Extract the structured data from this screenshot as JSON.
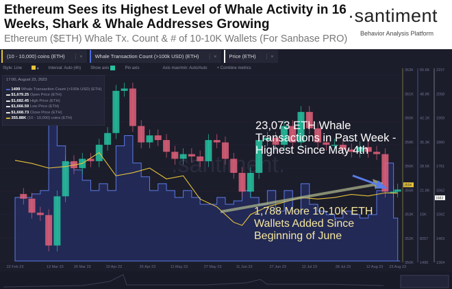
{
  "header": {
    "title": "Ethereum Sees its Highest Level of Whale Activity in 16 Weeks, Shark & Whale Addresses Growing",
    "subtitle": "Ethereum ($ETH) Whale Tx. Count & # of 10-10K Wallets (For Sanbase PRO)",
    "logo": "·santiment",
    "logo_tagline": "Behavior Analysis Platform"
  },
  "tabs": [
    {
      "label": "(10 - 10,000) coins (ETH)",
      "color": "#e8c53a"
    },
    {
      "label": "Whale Transaction Count (>100k USD) (ETH)",
      "color": "#4f6de0"
    },
    {
      "label": "Price (ETH)",
      "color": "#ffffff"
    }
  ],
  "controls": {
    "style": "Style: Line",
    "interval": "Interval: Auto (4h)",
    "show_axis": "Show axis",
    "pin_axis": "Pin axis",
    "axis_maxmin": "Axis max/min: Auto/Auto",
    "combine": "+ Combine metrics"
  },
  "legend": {
    "date": "17:00, August 23, 2023",
    "rows": [
      {
        "value": "1499",
        "label": "Whale Transaction Count (>100k USD) (ETH)"
      },
      {
        "value": "$1,679.25",
        "label": "Open Price (ETH)"
      },
      {
        "value": "$1,682.45",
        "label": "High Price (ETH)"
      },
      {
        "value": "$1,666.59",
        "label": "Low Price (ETH)"
      },
      {
        "value": "$1,668.73",
        "label": "Close Price (ETH)"
      },
      {
        "value": "355.88K",
        "label": "(10 - 10,000) coins (ETH)"
      }
    ]
  },
  "annotations": {
    "whale": "23,073 ETH Whale Transactions in Past Week - Highest Since May 4th",
    "wallets": "1,788 More 10-10K ETH Wallets Added Since Beginning of June"
  },
  "watermark": ".santiment.",
  "chart_data": {
    "type": "line",
    "x_unit": "days since 22 Feb 23",
    "x_tick_labels": [
      "22 Feb 23",
      "13 Mar 23",
      "26 Mar 23",
      "10 Apr 23",
      "26 Apr 23",
      "11 May 23",
      "27 May 23",
      "11 Jun 23",
      "27 Jun 23",
      "12 Jul 23",
      "28 Jul 23",
      "12 Aug 23",
      "23 Aug 23"
    ],
    "x_tick_days": [
      0,
      19,
      32,
      47,
      63,
      78,
      94,
      109,
      125,
      140,
      156,
      171,
      182
    ],
    "axes": {
      "wallets": {
        "labels": [
          "363K",
          "361K",
          "360K",
          "358K",
          "356K",
          "355K",
          "353K",
          "352K",
          "350K"
        ],
        "ylim": [
          351.5,
          363.5
        ],
        "current": "355K",
        "color": "#e8c53a"
      },
      "whale": {
        "labels": [
          "55.6K",
          "48.8K",
          "42.1K",
          "35.3K",
          "28.5K",
          "21.8K",
          "15K",
          "8257",
          "1490"
        ],
        "ylim": [
          1490,
          55600
        ],
        "current": "1490",
        "color": "#4f6de0"
      },
      "price": {
        "labels": [
          "2157",
          "2058",
          "1959",
          "1860",
          "1761",
          "1662",
          "1562",
          "1463",
          "1364"
        ],
        "ylim": [
          1364,
          2157
        ],
        "current": "1683",
        "color": "#ffffff"
      }
    },
    "series": [
      {
        "name": "Price (ETH)",
        "kind": "candle",
        "x": [
          0,
          4,
          8,
          12,
          16,
          20,
          24,
          28,
          32,
          36,
          40,
          44,
          48,
          52,
          56,
          60,
          64,
          68,
          72,
          76,
          80,
          84,
          88,
          92,
          96,
          100,
          104,
          108,
          112,
          116,
          120,
          124,
          128,
          132,
          136,
          140,
          144,
          148,
          152,
          156,
          160,
          164,
          168,
          172,
          176,
          180,
          182
        ],
        "y": [
          1650,
          1630,
          1570,
          1560,
          1430,
          1640,
          1790,
          1760,
          1800,
          1790,
          1860,
          1910,
          2090,
          2100,
          1940,
          1870,
          1900,
          1880,
          1830,
          1800,
          1820,
          1810,
          1790,
          1880,
          1870,
          1800,
          1740,
          1660,
          1740,
          1880,
          1890,
          1860,
          1940,
          1870,
          2000,
          1930,
          1870,
          1860,
          1860,
          1840,
          1830,
          1850,
          1830,
          1820,
          1660,
          1660,
          1669
        ]
      },
      {
        "name": "Whale Transaction Count (>100k USD) (ETH)",
        "kind": "step-area",
        "x": [
          0,
          4,
          8,
          12,
          16,
          20,
          24,
          28,
          32,
          36,
          40,
          44,
          48,
          52,
          56,
          60,
          64,
          68,
          72,
          76,
          80,
          84,
          88,
          92,
          96,
          100,
          104,
          108,
          112,
          116,
          120,
          124,
          128,
          132,
          136,
          140,
          144,
          148,
          152,
          156,
          160,
          164,
          168,
          172,
          176,
          180,
          182
        ],
        "y": [
          20000,
          20000,
          21000,
          22000,
          50000,
          35000,
          30000,
          28000,
          25000,
          22000,
          24000,
          22000,
          35000,
          38000,
          30000,
          26000,
          22000,
          24000,
          22000,
          20000,
          22000,
          20000,
          18000,
          18000,
          20000,
          18000,
          19000,
          22000,
          20000,
          18000,
          22000,
          16000,
          22000,
          16000,
          24000,
          18000,
          16000,
          15000,
          14000,
          16000,
          15000,
          14000,
          15000,
          22000,
          30000,
          14000,
          1499
        ]
      },
      {
        "name": "(10 - 10,000) coins (ETH)",
        "kind": "line",
        "x": [
          0,
          8,
          16,
          24,
          32,
          40,
          48,
          56,
          64,
          72,
          80,
          88,
          96,
          104,
          108,
          112,
          120,
          128,
          136,
          144,
          152,
          160,
          168,
          176,
          182
        ],
        "y": [
          358.0,
          357.8,
          357.5,
          357.6,
          357.8,
          358.5,
          357.0,
          357.2,
          357.5,
          356.8,
          357.0,
          355.5,
          355.0,
          354.0,
          353.8,
          354.5,
          355.0,
          355.3,
          355.6,
          355.5,
          355.6,
          355.8,
          355.7,
          355.9,
          355.88
        ]
      }
    ]
  }
}
